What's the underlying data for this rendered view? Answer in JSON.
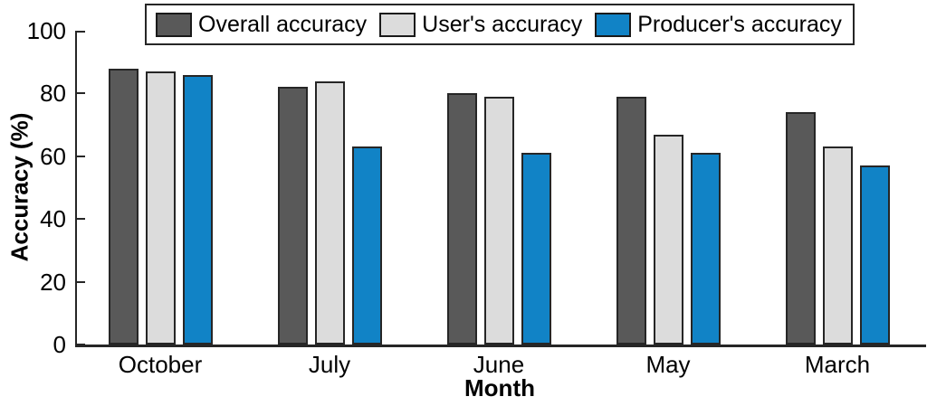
{
  "chart_data": {
    "type": "bar",
    "title": "",
    "categories": [
      "October",
      "July",
      "June",
      "May",
      "March"
    ],
    "series": [
      {
        "name": "Overall accuracy",
        "color": "#595959",
        "values": [
          88,
          82,
          80,
          79,
          74
        ]
      },
      {
        "name": "User's accuracy",
        "color": "#dcdcdc",
        "values": [
          87,
          84,
          79,
          67,
          63
        ]
      },
      {
        "name": "Producer's accuracy",
        "color": "#1183c6",
        "values": [
          86,
          63,
          61,
          61,
          57
        ]
      }
    ],
    "xlabel": "Month",
    "ylabel": "Accuracy (%)",
    "ylim": [
      0,
      100
    ],
    "yticks": [
      0,
      20,
      40,
      60,
      80,
      100
    ],
    "legend_position": "top",
    "grid": false,
    "axis_color": "#262626"
  }
}
